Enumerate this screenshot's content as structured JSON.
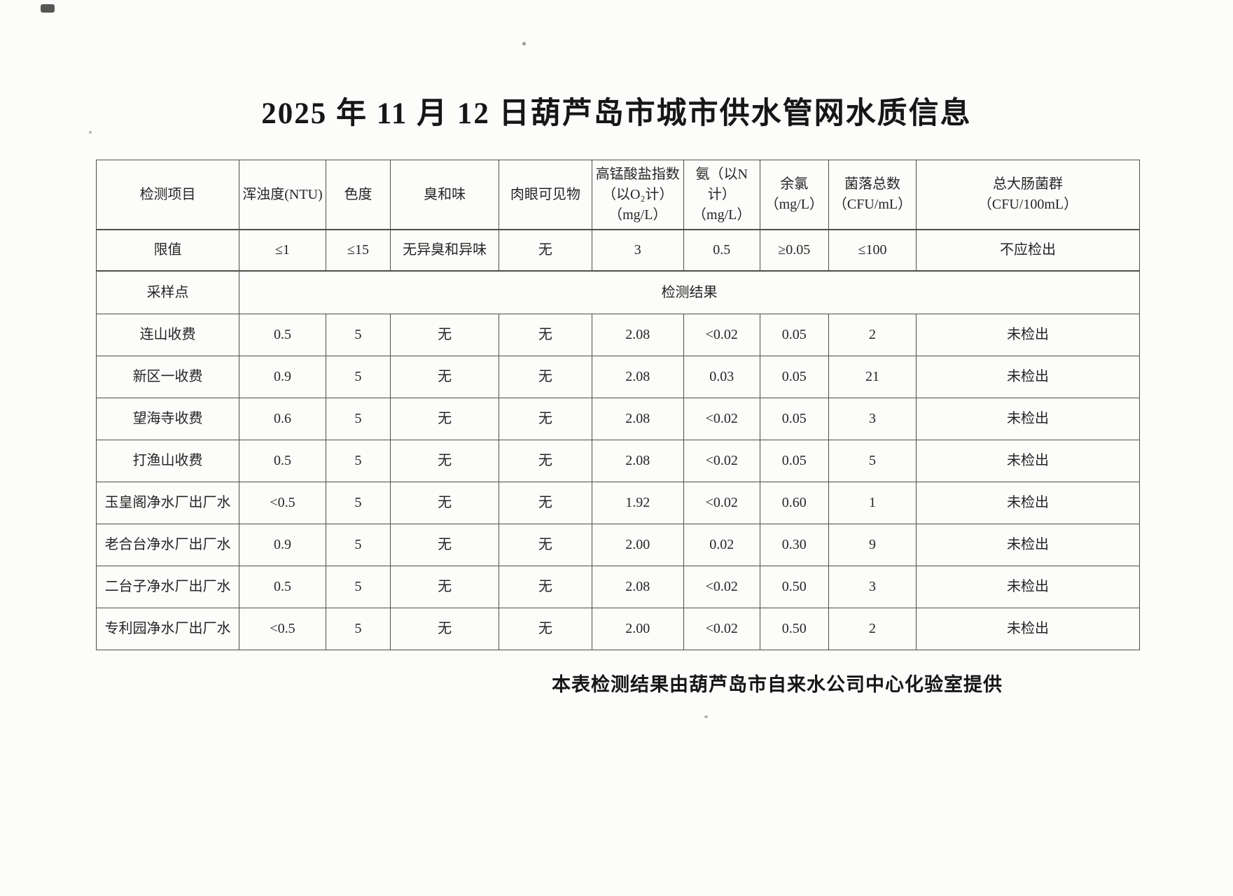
{
  "page": {
    "title": "2025 年 11 月 12 日葫芦岛市城市供水管网水质信息",
    "footer": "本表检测结果由葫芦岛市自来水公司中心化验室提供"
  },
  "table": {
    "headers": [
      "检测项目",
      "浑浊度(NTU)",
      "色度",
      "臭和味",
      "肉眼可见物",
      "高锰酸盐指数\n（以O₂计）\n（mg/L）",
      "氨（以N计）\n（mg/L）",
      "余氯\n（mg/L）",
      "菌落总数\n（CFU/mL）",
      "总大肠菌群\n（CFU/100mL）"
    ],
    "limits_row": {
      "label": "限值",
      "values": [
        "≤1",
        "≤15",
        "无异臭和异味",
        "无",
        "3",
        "0.5",
        "≥0.05",
        "≤100",
        "不应检出"
      ]
    },
    "sampling_row": {
      "label": "采样点",
      "result_label": "检测结果"
    },
    "rows": [
      {
        "site": "连山收费",
        "values": [
          "0.5",
          "5",
          "无",
          "无",
          "2.08",
          "<0.02",
          "0.05",
          "2",
          "未检出"
        ]
      },
      {
        "site": "新区一收费",
        "values": [
          "0.9",
          "5",
          "无",
          "无",
          "2.08",
          "0.03",
          "0.05",
          "21",
          "未检出"
        ]
      },
      {
        "site": "望海寺收费",
        "values": [
          "0.6",
          "5",
          "无",
          "无",
          "2.08",
          "<0.02",
          "0.05",
          "3",
          "未检出"
        ]
      },
      {
        "site": "打渔山收费",
        "values": [
          "0.5",
          "5",
          "无",
          "无",
          "2.08",
          "<0.02",
          "0.05",
          "5",
          "未检出"
        ]
      },
      {
        "site": "玉皇阁净水厂出厂水",
        "values": [
          "<0.5",
          "5",
          "无",
          "无",
          "1.92",
          "<0.02",
          "0.60",
          "1",
          "未检出"
        ]
      },
      {
        "site": "老合台净水厂出厂水",
        "values": [
          "0.9",
          "5",
          "无",
          "无",
          "2.00",
          "0.02",
          "0.30",
          "9",
          "未检出"
        ]
      },
      {
        "site": "二台子净水厂出厂水",
        "values": [
          "0.5",
          "5",
          "无",
          "无",
          "2.08",
          "<0.02",
          "0.50",
          "3",
          "未检出"
        ]
      },
      {
        "site": "专利园净水厂出厂水",
        "values": [
          "<0.5",
          "5",
          "无",
          "无",
          "2.00",
          "<0.02",
          "0.50",
          "2",
          "未检出"
        ]
      }
    ]
  }
}
